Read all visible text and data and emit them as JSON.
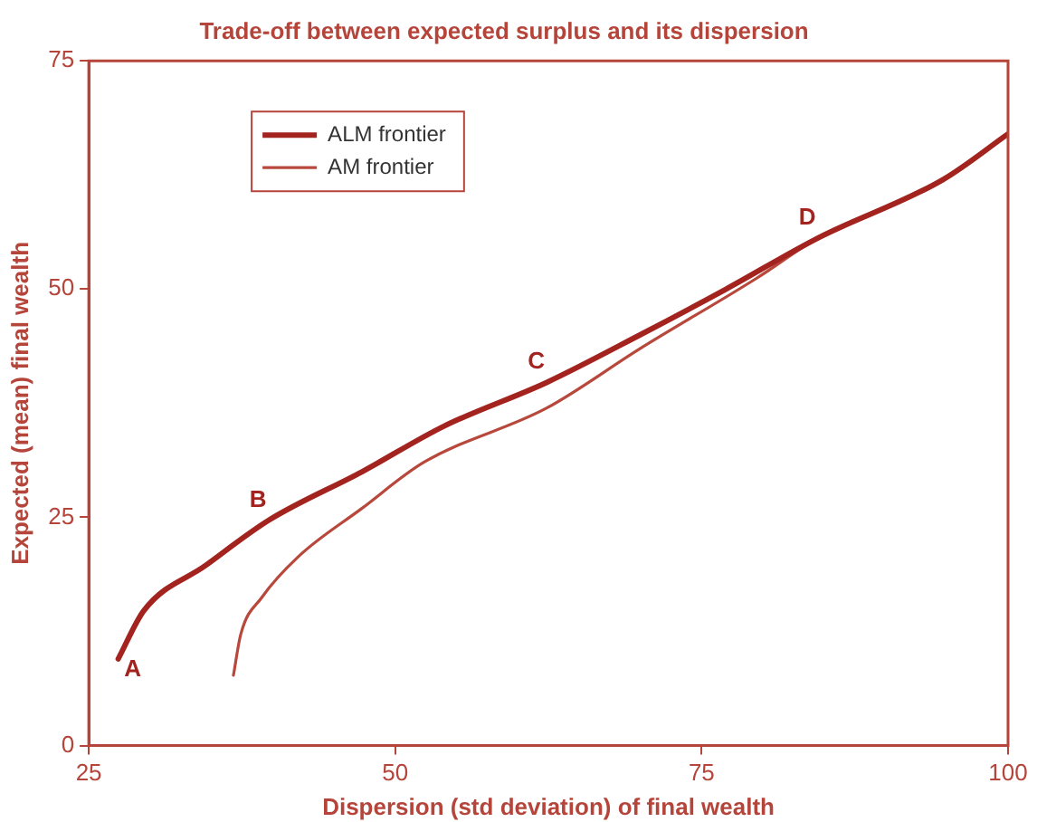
{
  "chart_data": {
    "type": "line",
    "title": "Trade-off between expected surplus and its dispersion",
    "xlabel": "Dispersion (std deviation) of final wealth",
    "ylabel": "Expected (mean) final wealth",
    "xlim": [
      25,
      100
    ],
    "xticks": [
      25,
      50,
      75,
      100
    ],
    "ylim": [
      0,
      75
    ],
    "yticks": [
      0,
      25,
      50,
      75
    ],
    "grid": false,
    "legend": "top left",
    "marker": "none",
    "line_style": "solid",
    "series": [
      {
        "name": "ALM frontier",
        "color": "#a3231f",
        "x": [
          27.4,
          29.5,
          34.5,
          39.7,
          47.3,
          54,
          62.4,
          70,
          77,
          84.5,
          94.7,
          100
        ],
        "values": [
          9.5,
          14.8,
          19.7,
          24.7,
          30,
          35,
          39.8,
          45,
          50,
          55.6,
          62,
          67
        ]
      },
      {
        "name": "AM frontier",
        "color": "#b8483c",
        "x": [
          36.8,
          37.4,
          39.1,
          42.1,
          47.3,
          52.3,
          62.4,
          70,
          79.5,
          84.5,
          94.7,
          100
        ],
        "values": [
          7.7,
          12.2,
          16.2,
          20.7,
          26,
          31,
          37,
          43.5,
          51.2,
          55.6,
          62,
          67
        ]
      }
    ],
    "annotations": [
      {
        "text": "A",
        "x": 27.4,
        "y": 9.5
      },
      {
        "text": "B",
        "x": 39.7,
        "y": 24.7
      },
      {
        "text": "C",
        "x": 62.4,
        "y": 39.8
      },
      {
        "text": "D",
        "x": 84.5,
        "y": 55.6
      }
    ]
  }
}
